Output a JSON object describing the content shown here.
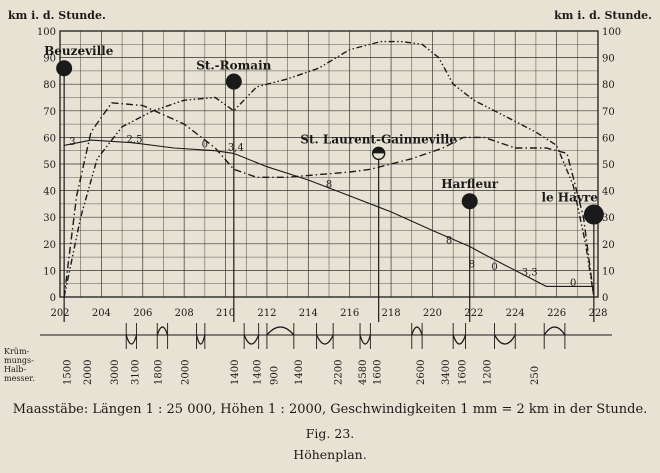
{
  "chart_data": {
    "type": "line",
    "y_axis_left_label": "km i. d. Stunde.",
    "y_axis_right_label": "km i. d. Stunde.",
    "y_ticks": [
      "0",
      "10",
      "20",
      "30",
      "40",
      "50",
      "60",
      "70",
      "80",
      "90",
      "100"
    ],
    "ylim": [
      0,
      100
    ],
    "x_ticks": [
      "202",
      "204",
      "206",
      "208",
      "210",
      "212",
      "214",
      "216",
      "218",
      "220",
      "222",
      "224",
      "226",
      "228"
    ],
    "xlim": [
      202,
      228
    ],
    "grid": true,
    "stations": [
      {
        "name": "Beuzeville",
        "x": 202.2,
        "y": 86
      },
      {
        "name": "St.-Romain",
        "x": 210.4,
        "y": 81
      },
      {
        "name": "St. Laurent-Gainneville",
        "x": 217.4,
        "y": 54
      },
      {
        "name": "Harfleur",
        "x": 221.8,
        "y": 36
      },
      {
        "name": "le Havre",
        "x": 227.8,
        "y": 31
      }
    ],
    "gradient_labels": [
      {
        "text": "3",
        "x": 202.6,
        "y": 56
      },
      {
        "text": "2,5",
        "x": 205.6,
        "y": 57
      },
      {
        "text": "0",
        "x": 209.0,
        "y": 55
      },
      {
        "text": "3,4",
        "x": 210.5,
        "y": 54
      },
      {
        "text": "8",
        "x": 215.0,
        "y": 40
      },
      {
        "text": "8",
        "x": 220.8,
        "y": 19
      },
      {
        "text": "8",
        "x": 221.9,
        "y": 10
      },
      {
        "text": "0",
        "x": 223.0,
        "y": 9
      },
      {
        "text": "3,3",
        "x": 224.7,
        "y": 7
      },
      {
        "text": "0",
        "x": 226.8,
        "y": 3
      }
    ],
    "series": [
      {
        "style": "solid",
        "x": [
          202.2,
          203.5,
          205.5,
          207.5,
          209.5,
          210.4,
          212,
          214,
          216,
          218,
          220,
          221.8,
          222.5,
          224,
          225.5,
          227.8
        ],
        "y": [
          57,
          59,
          58,
          56,
          55,
          54,
          49,
          44,
          38,
          32,
          25,
          19,
          16,
          10,
          4,
          4
        ]
      },
      {
        "style": "dash-dot",
        "x": [
          202.2,
          202.8,
          203.5,
          204.5,
          206,
          208,
          209.5,
          210.4,
          211.5,
          213,
          214.5,
          216,
          217,
          218,
          219,
          220.5,
          221.5,
          222.5,
          224,
          225.5,
          226.5,
          227.3,
          227.8
        ],
        "y": [
          0,
          38,
          62,
          73,
          72,
          65,
          56,
          48,
          45,
          45,
          46,
          47,
          48,
          50,
          52,
          56,
          60,
          60,
          56,
          56,
          54,
          30,
          0
        ]
      },
      {
        "style": "dash-dot-dot",
        "x": [
          202.2,
          203.0,
          203.8,
          205,
          206.5,
          208,
          209.5,
          210.4,
          211.5,
          213,
          214.5,
          216,
          217.5,
          218.5,
          219.5,
          220.3,
          221,
          222,
          223,
          224,
          225,
          226,
          226.8,
          227.4,
          227.8
        ],
        "y": [
          0,
          30,
          52,
          64,
          70,
          74,
          75,
          70,
          79,
          82,
          86,
          93,
          96,
          96,
          95,
          90,
          80,
          74,
          70,
          66,
          62,
          57,
          42,
          20,
          0
        ]
      }
    ],
    "curve_radii": [
      "1500",
      "2000",
      "3000",
      "3100",
      "1800",
      "2000",
      "1400",
      "1400",
      "900",
      "1400",
      "2200",
      "4580",
      "1600",
      "2600",
      "3400",
      "1600",
      "1200",
      "250"
    ],
    "curve_radii_label": "Krüm- mungs- Halb- messer."
  },
  "captions": {
    "scales": "Maasstäbe: Längen 1 : 25 000, Höhen 1 : 2000, Geschwindigkeiten 1 mm = 2 km in der Stunde.",
    "figure": "Fig. 23.",
    "title": "Höhenplan."
  }
}
